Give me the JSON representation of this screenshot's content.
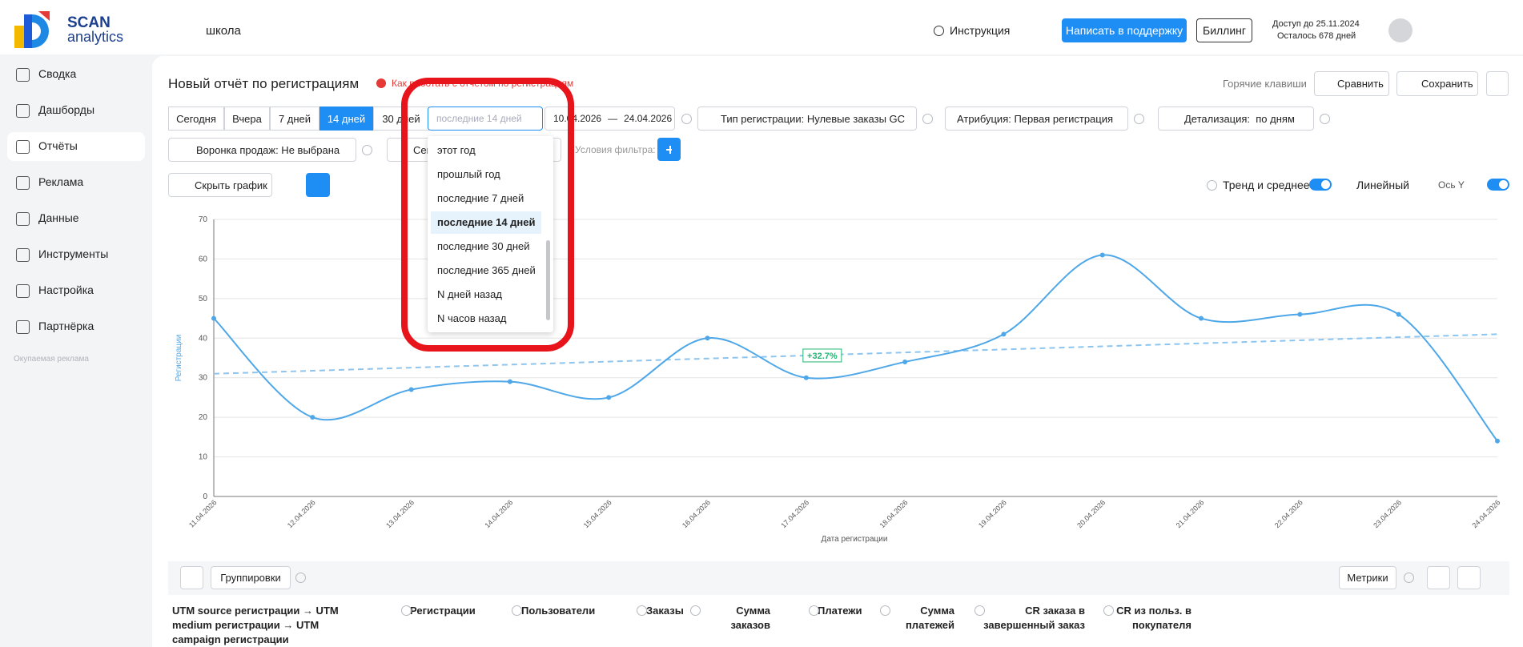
{
  "header": {
    "logo_top": "SCAN",
    "logo_bottom": "analytics",
    "project": "школа",
    "help": "Инструкция",
    "support": "Написать в поддержку",
    "billing": "Биллинг",
    "access": "Доступ до 25.11.2024",
    "remaining": "Осталось 678 дней"
  },
  "sidebar": {
    "items": [
      "Сводка",
      "Дашборды",
      "Отчёты",
      "Реклама",
      "Данные",
      "Инструменты",
      "Настройка",
      "Партнёрка"
    ],
    "active": 2,
    "section": "Окупаемая реклама"
  },
  "report": {
    "title": "Новый отчёт по регистрациям",
    "help_link": "Как работать с отчетом по регистрациям",
    "hotkeys": "Горячие клавиши",
    "compare": "Сравнить",
    "save": "Сохранить"
  },
  "filters": {
    "periods": [
      "Сегодня",
      "Вчера",
      "7 дней",
      "14 дней",
      "30 дней"
    ],
    "active_period": 3,
    "period_search": "последние 14 дней",
    "date_from": "10.04.2026",
    "date_sep": "—",
    "date_to": "24.04.2026",
    "reg_type": "Тип регистрации: Нулевые заказы GC",
    "attribution": "Атрибуция: Первая регистрация",
    "detail": "Детализация:  по дням",
    "funnel": "Воронка продаж: Не выбрана",
    "segment": "Сег",
    "conditions": "Условия фильтра:"
  },
  "dropdown": {
    "options": [
      "этот год",
      "прошлый год",
      "последние 7 дней",
      "последние 14 дней",
      "последние 30 дней",
      "последние 365 дней",
      "N дней назад",
      "N часов назад"
    ],
    "selected": 3
  },
  "chart_toolbar": {
    "hide": "Скрыть график",
    "trend": "Тренд и среднее",
    "line_type": "Линейный",
    "axis": "Ось Y"
  },
  "chart_data": {
    "type": "line",
    "y_label": "Регистрации",
    "x_label": "Дата регистрации",
    "color": "#4ea7e8",
    "grid": true,
    "categories": [
      "11.04.2026",
      "12.04.2026",
      "13.04.2026",
      "14.04.2026",
      "15.04.2026",
      "16.04.2026",
      "17.04.2026",
      "18.04.2026",
      "19.04.2026",
      "20.04.2026",
      "21.04.2026",
      "22.04.2026",
      "23.04.2026",
      "24.04.2026"
    ],
    "values": [
      45,
      20,
      27,
      29,
      25,
      40,
      30,
      34,
      41,
      61,
      45,
      46,
      46,
      14
    ],
    "ylim": [
      0,
      70
    ],
    "yticks": [
      0,
      10,
      20,
      30,
      40,
      50,
      60,
      70
    ],
    "trend": [
      31,
      41
    ],
    "annotation": "+32.7%"
  },
  "table": {
    "grouping": "Группировки",
    "metrics": "Метрики",
    "columns": [
      "UTM source регистрации → UTM medium регистрации → UTM campaign регистрации",
      "Регистрации",
      "Пользователи",
      "Заказы",
      "Сумма заказов",
      "Платежи",
      "Сумма платежей",
      "CR заказа в завершенный заказ",
      "CR из польз. в покупателя"
    ]
  }
}
